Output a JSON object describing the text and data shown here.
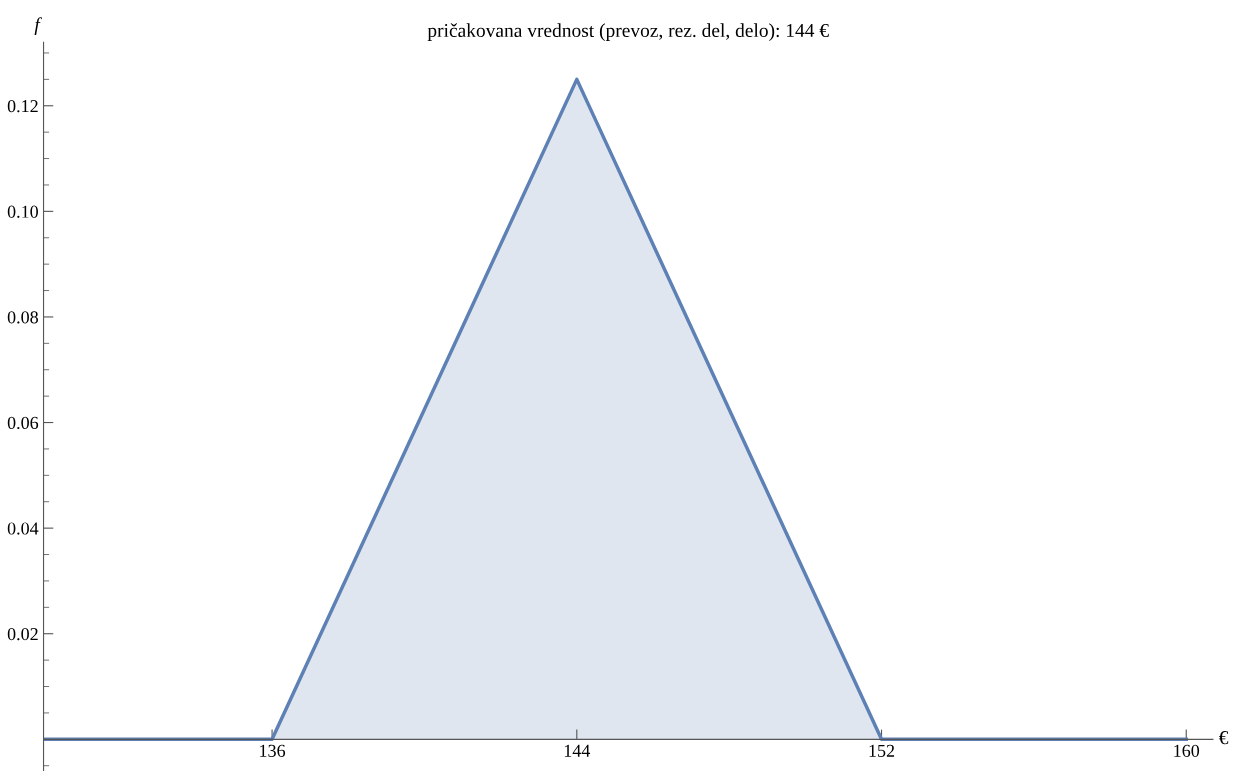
{
  "chart_data": {
    "type": "area",
    "title": "pričakovana vrednost (prevoz, rez. del, delo): 144 €",
    "xlabel": "€",
    "ylabel": "f",
    "x": [
      130,
      136,
      144,
      152,
      160
    ],
    "series": [
      {
        "color": "#5e81b5",
        "values": [
          0,
          0,
          0.125,
          0,
          0
        ]
      }
    ],
    "xlim": [
      130,
      160.7
    ],
    "ylim": [
      -0.006,
      0.132
    ],
    "xticks": [
      136,
      144,
      152,
      160
    ],
    "yticks": [
      {
        "value": 0.02,
        "label": "0.02"
      },
      {
        "value": 0.04,
        "label": "0.04"
      },
      {
        "value": 0.06,
        "label": "0.06"
      },
      {
        "value": 0.08,
        "label": "0.08"
      },
      {
        "value": 0.1,
        "label": "0.10"
      },
      {
        "value": 0.12,
        "label": "0.12"
      }
    ],
    "grid": false,
    "legend": false
  }
}
